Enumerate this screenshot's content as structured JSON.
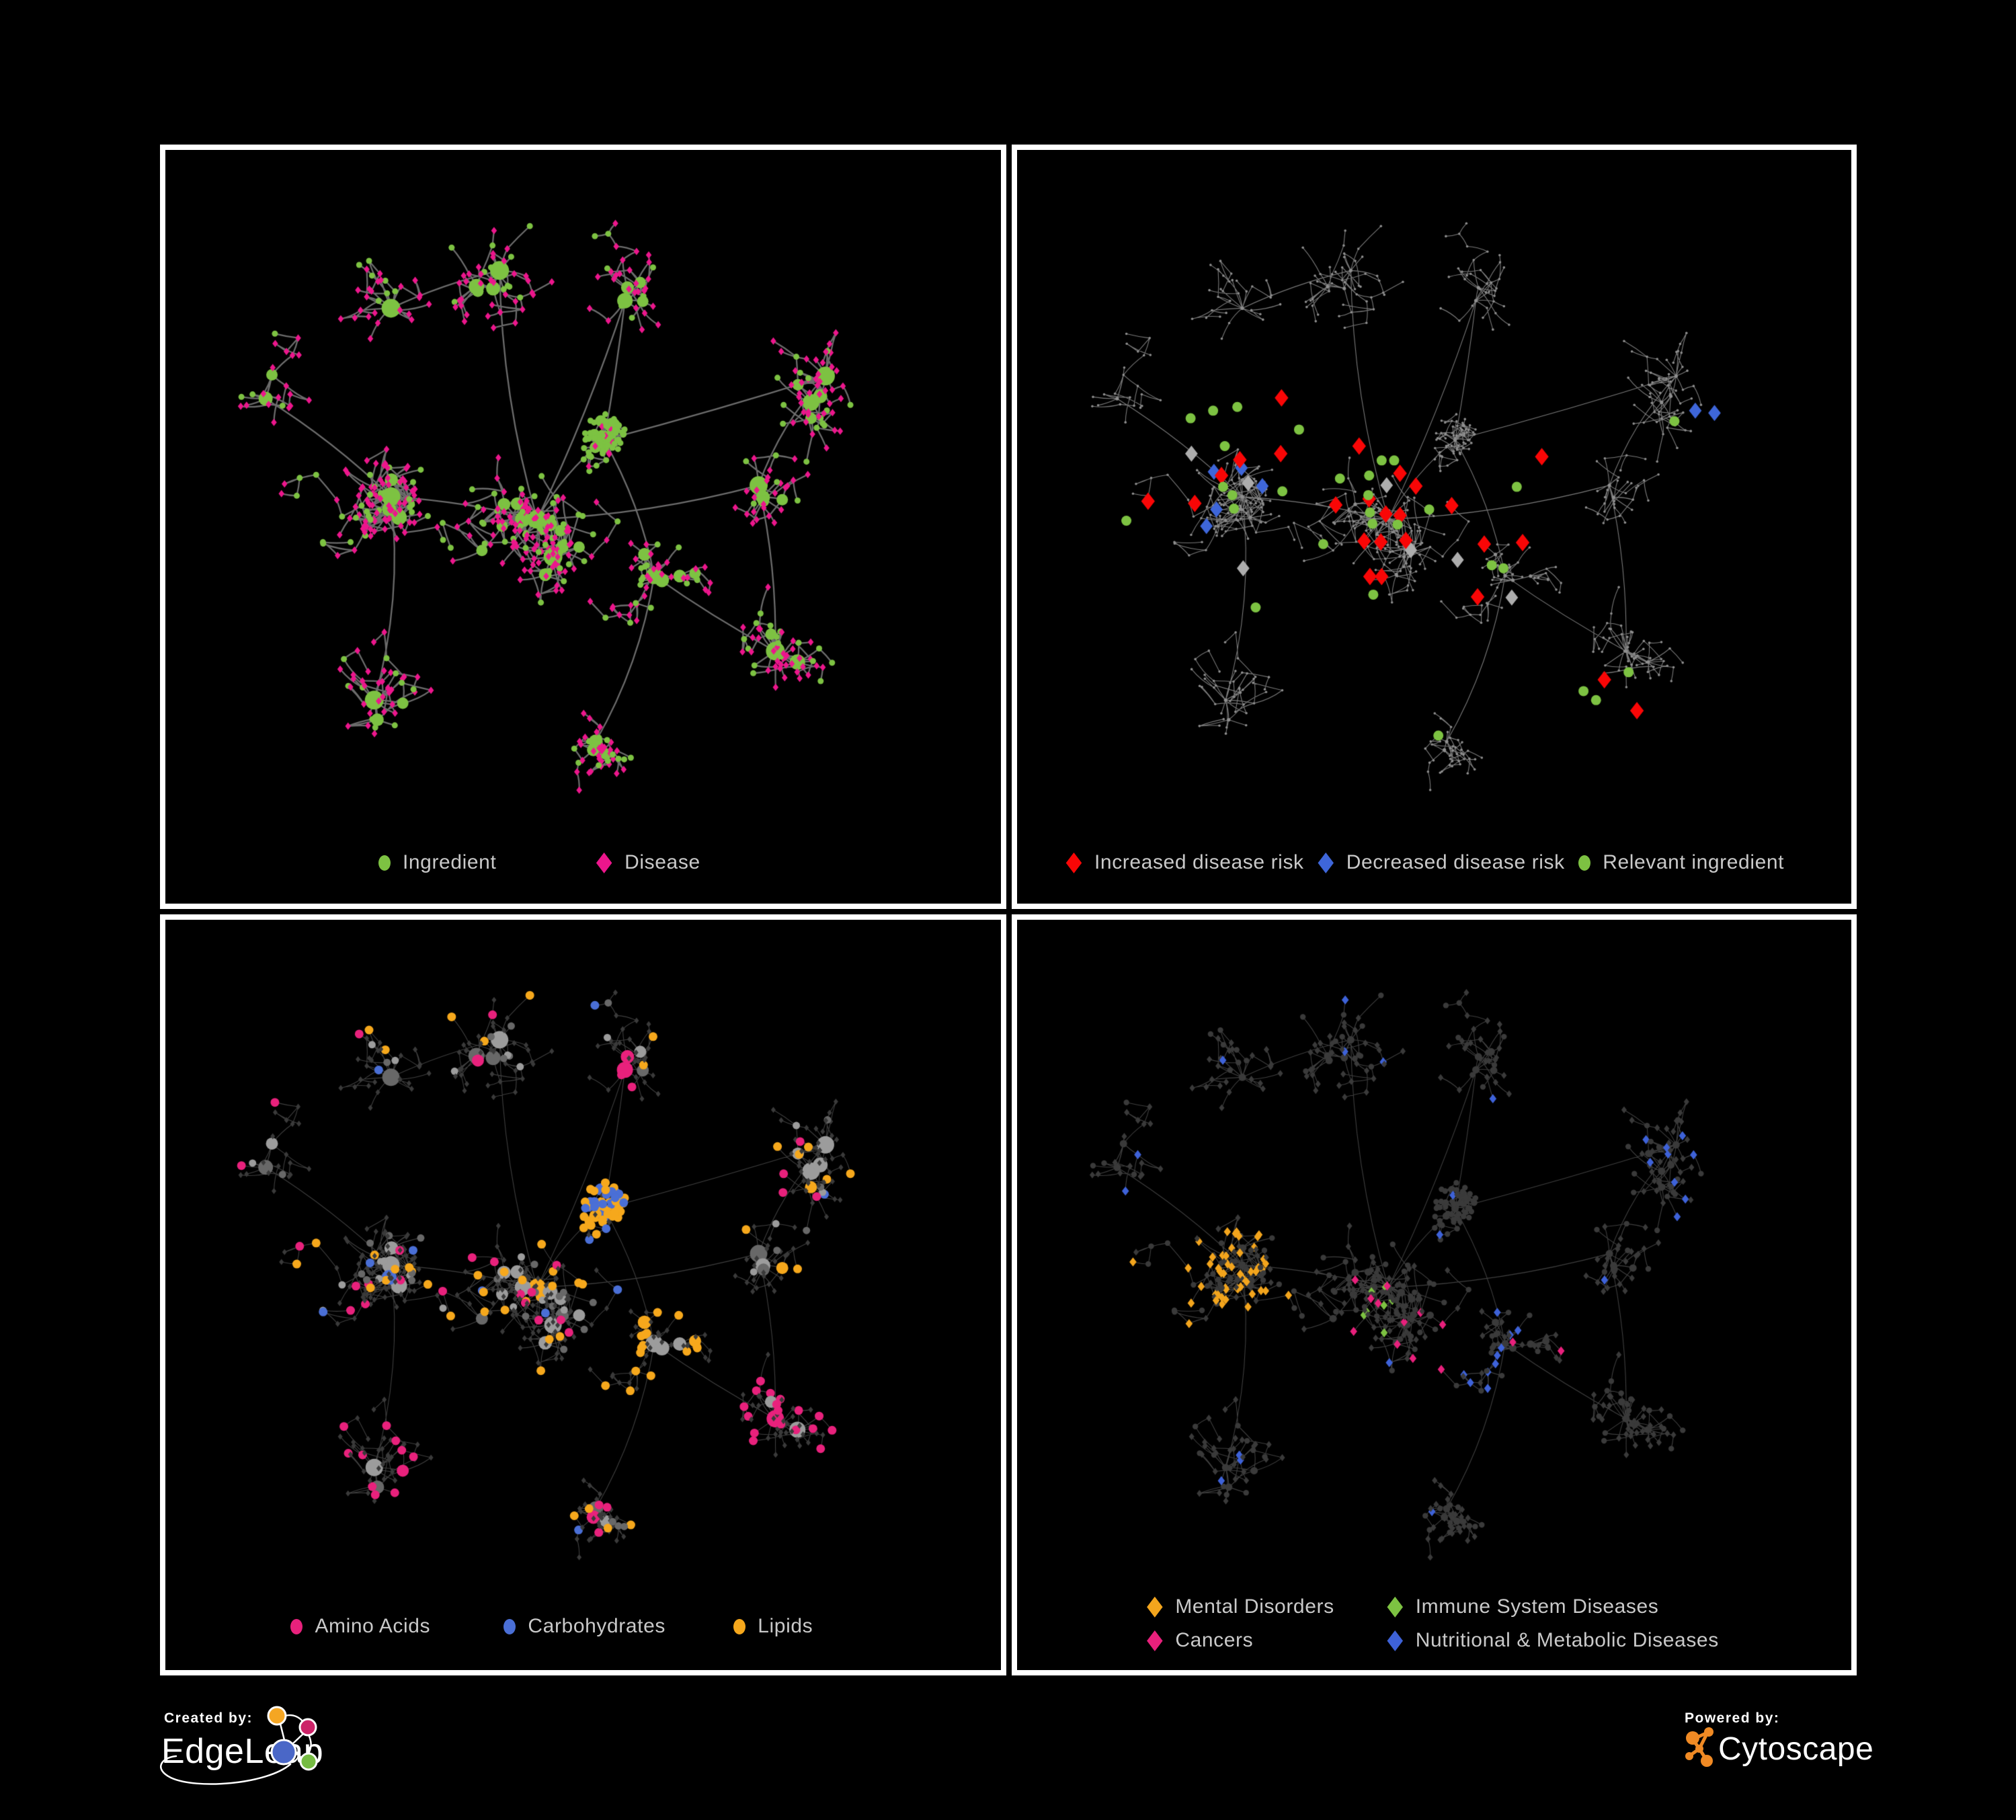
{
  "footer": {
    "created_by": {
      "label": "Created by:",
      "brand": "EdgeLeap",
      "node_colors": [
        "#F5A623",
        "#CC2368",
        "#4A67C7",
        "#76BC43"
      ]
    },
    "powered_by": {
      "label": "Powered by:",
      "brand": "Cytoscape",
      "color": "#F08A24"
    }
  },
  "chart_data": {
    "type": "network",
    "description": "Four panels showing the same ingredient-disease network with different colorings",
    "palette": {
      "ingredient_green": "#7DC242",
      "disease_magenta": "#EC168C",
      "risk_red": "#F90606",
      "risk_blue": "#3E66D9",
      "risk_gray": "#ADADAD",
      "amino": "#E8217C",
      "carb": "#4A6FD6",
      "lipid": "#F6A81C",
      "mental": "#F3A51D",
      "cancer": "#E8207C",
      "immune": "#7DC242",
      "nutri": "#3E62D8",
      "gray_light": "#9C9C9C",
      "gray_mid": "#686868",
      "dark": "#3A3A3A",
      "dot_gray": "#8F8F8F",
      "edge_p0": "#6C6C6C",
      "edge_p1": "#7A7A7A",
      "edge_faint": "rgba(158,158,158,0.40)"
    },
    "panels": [
      {
        "id": "ingredient-disease",
        "legend": [
          {
            "label": "Ingredient",
            "shape": "circle",
            "color": "#7DC242"
          },
          {
            "label": "Disease",
            "shape": "diamond",
            "color": "#EC168C"
          }
        ]
      },
      {
        "id": "disease-risk",
        "legend": [
          {
            "label": "Increased disease risk",
            "shape": "diamond",
            "color": "#F90606"
          },
          {
            "label": "Decreased disease risk",
            "shape": "diamond",
            "color": "#3E66D9"
          },
          {
            "label": "Relevant ingredient",
            "shape": "circle",
            "color": "#7DC242"
          }
        ],
        "highlights": {
          "red": [
            [
              0.317,
              0.329
            ],
            [
              0.41,
              0.393
            ],
            [
              0.267,
              0.411
            ],
            [
              0.245,
              0.432
            ],
            [
              0.213,
              0.469
            ],
            [
              0.157,
              0.466
            ],
            [
              0.459,
              0.429
            ],
            [
              0.478,
              0.446
            ],
            [
              0.382,
              0.471
            ],
            [
              0.422,
              0.463
            ],
            [
              0.442,
              0.483
            ],
            [
              0.459,
              0.485
            ],
            [
              0.416,
              0.519
            ],
            [
              0.436,
              0.52
            ],
            [
              0.466,
              0.518
            ],
            [
              0.423,
              0.566
            ],
            [
              0.437,
              0.566
            ],
            [
              0.521,
              0.472
            ],
            [
              0.56,
              0.523
            ],
            [
              0.606,
              0.521
            ],
            [
              0.552,
              0.593
            ],
            [
              0.629,
              0.407
            ],
            [
              0.704,
              0.703
            ],
            [
              0.743,
              0.744
            ],
            [
              0.316,
              0.403
            ]
          ],
          "blue": [
            [
              0.236,
              0.427
            ],
            [
              0.269,
              0.422
            ],
            [
              0.294,
              0.446
            ],
            [
              0.239,
              0.477
            ],
            [
              0.227,
              0.499
            ],
            [
              0.813,
              0.346
            ],
            [
              0.836,
              0.349
            ]
          ],
          "gray": [
            [
              0.209,
              0.403
            ],
            [
              0.277,
              0.442
            ],
            [
              0.443,
              0.445
            ],
            [
              0.472,
              0.531
            ],
            [
              0.528,
              0.544
            ],
            [
              0.593,
              0.594
            ],
            [
              0.271,
              0.555
            ]
          ],
          "green": [
            [
              0.208,
              0.356
            ],
            [
              0.235,
              0.346
            ],
            [
              0.264,
              0.341
            ],
            [
              0.338,
              0.371
            ],
            [
              0.249,
              0.393
            ],
            [
              0.247,
              0.447
            ],
            [
              0.258,
              0.458
            ],
            [
              0.26,
              0.476
            ],
            [
              0.131,
              0.492
            ],
            [
              0.318,
              0.453
            ],
            [
              0.367,
              0.523
            ],
            [
              0.387,
              0.436
            ],
            [
              0.422,
              0.432
            ],
            [
              0.437,
              0.412
            ],
            [
              0.452,
              0.412
            ],
            [
              0.421,
              0.458
            ],
            [
              0.423,
              0.481
            ],
            [
              0.426,
              0.496
            ],
            [
              0.456,
              0.497
            ],
            [
              0.494,
              0.477
            ],
            [
              0.427,
              0.59
            ],
            [
              0.286,
              0.607
            ],
            [
              0.599,
              0.447
            ],
            [
              0.569,
              0.551
            ],
            [
              0.583,
              0.555
            ],
            [
              0.733,
              0.693
            ],
            [
              0.679,
              0.718
            ],
            [
              0.694,
              0.73
            ],
            [
              0.788,
              0.36
            ],
            [
              0.505,
              0.777
            ]
          ]
        }
      },
      {
        "id": "nutrient-classes",
        "legend": [
          {
            "label": "Amino Acids",
            "shape": "circle",
            "color": "#E8217C"
          },
          {
            "label": "Carbohydrates",
            "shape": "circle",
            "color": "#4A6FD6"
          },
          {
            "label": "Lipids",
            "shape": "circle",
            "color": "#F6A81C"
          }
        ]
      },
      {
        "id": "disease-categories",
        "legend": [
          {
            "label": "Mental Disorders",
            "shape": "diamond",
            "color": "#F3A51D"
          },
          {
            "label": "Immune System Diseases",
            "shape": "diamond",
            "color": "#7DC242"
          },
          {
            "label": "Cancers",
            "shape": "diamond",
            "color": "#E8207C"
          },
          {
            "label": "Nutritional & Metabolic Diseases",
            "shape": "diamond",
            "color": "#3E62D8"
          }
        ]
      }
    ],
    "network": {
      "seed": 1337,
      "clusters": [
        {
          "x": 0.27,
          "y": 0.46,
          "n": 115,
          "step": 0.027
        },
        {
          "x": 0.445,
          "y": 0.49,
          "n": 150,
          "step": 0.028
        },
        {
          "x": 0.525,
          "y": 0.385,
          "n": 65,
          "step": 0.013,
          "ing": 0.85
        },
        {
          "x": 0.585,
          "y": 0.565,
          "n": 50,
          "step": 0.019
        },
        {
          "x": 0.515,
          "y": 0.785,
          "n": 42,
          "step": 0.017
        },
        {
          "x": 0.4,
          "y": 0.16,
          "n": 48,
          "step": 0.026
        },
        {
          "x": 0.55,
          "y": 0.2,
          "n": 36,
          "step": 0.024
        },
        {
          "x": 0.79,
          "y": 0.3,
          "n": 60,
          "step": 0.024
        },
        {
          "x": 0.71,
          "y": 0.445,
          "n": 32,
          "step": 0.022
        },
        {
          "x": 0.73,
          "y": 0.665,
          "n": 55,
          "step": 0.022
        },
        {
          "x": 0.12,
          "y": 0.33,
          "n": 22,
          "step": 0.026
        },
        {
          "x": 0.25,
          "y": 0.73,
          "n": 45,
          "step": 0.026
        },
        {
          "x": 0.27,
          "y": 0.21,
          "n": 30,
          "step": 0.026
        }
      ],
      "links": [
        [
          0,
          1
        ],
        [
          1,
          2
        ],
        [
          2,
          3
        ],
        [
          1,
          5
        ],
        [
          5,
          12
        ],
        [
          1,
          6
        ],
        [
          6,
          2
        ],
        [
          3,
          4
        ],
        [
          1,
          8
        ],
        [
          8,
          7
        ],
        [
          8,
          9
        ],
        [
          0,
          10
        ],
        [
          0,
          11
        ],
        [
          3,
          9
        ],
        [
          7,
          2
        ]
      ]
    }
  }
}
